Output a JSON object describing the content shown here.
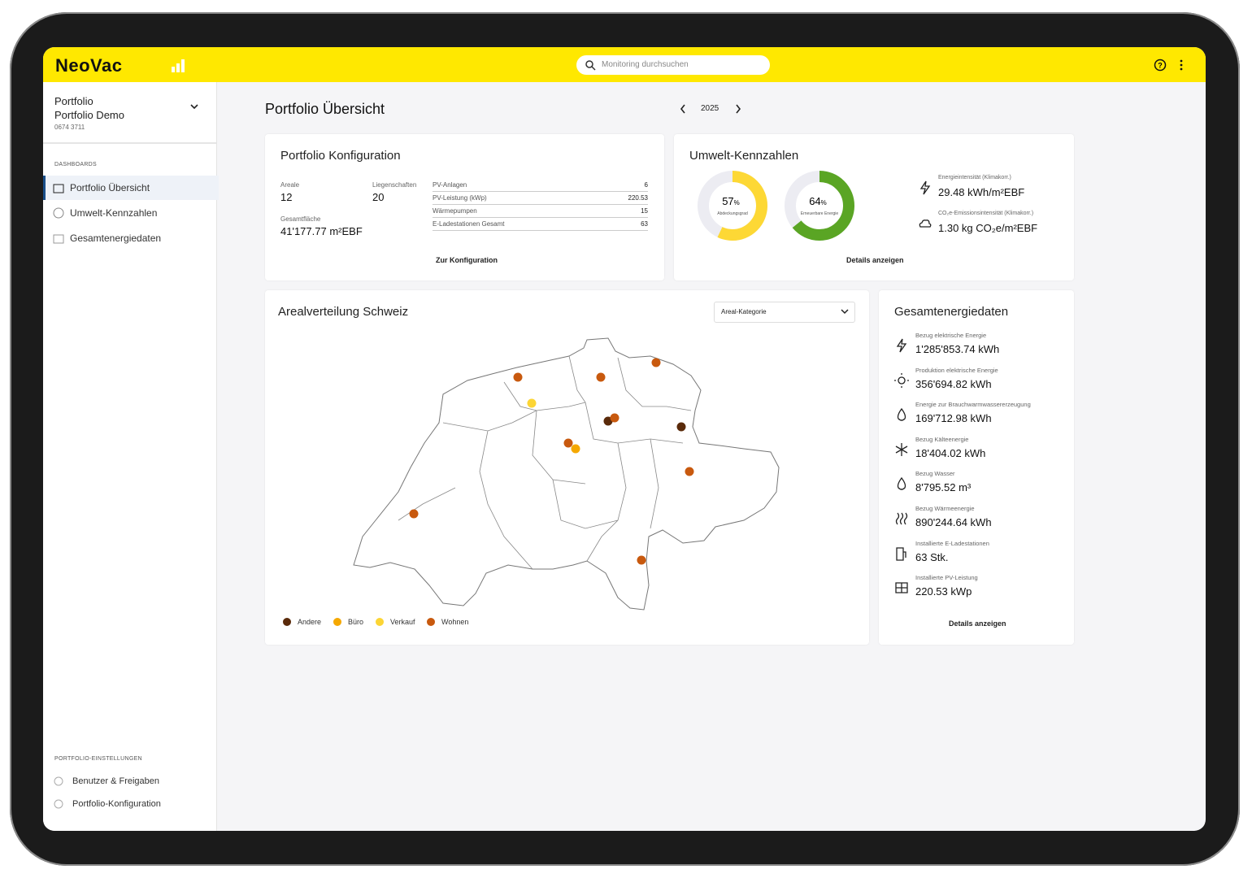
{
  "header": {
    "logo": "NeoVac",
    "search_placeholder": "Monitoring durchsuchen"
  },
  "sidebar": {
    "portfolio_label": "Portfolio",
    "portfolio_name": "Portfolio Demo",
    "portfolio_id": "0674 3711",
    "dashboards_heading": "DASHBOARDS",
    "dashboards": [
      "Portfolio Übersicht",
      "Umwelt-Kennzahlen",
      "Gesamtenergiedaten"
    ],
    "settings_heading": "PORTFOLIO-EINSTELLUNGEN",
    "settings": [
      "Benutzer & Freigaben",
      "Portfolio-Konfiguration"
    ]
  },
  "main": {
    "title": "Portfolio Übersicht",
    "year": "2025"
  },
  "config_card": {
    "title": "Portfolio Konfiguration",
    "stats": [
      {
        "label": "Areale",
        "value": "12"
      },
      {
        "label": "Liegenschaften",
        "value": "20"
      },
      {
        "label": "Gesamtfläche",
        "value": "41'177.77 m²EBF"
      }
    ],
    "rows": [
      [
        "PV-Anlagen",
        "6"
      ],
      [
        "PV-Leistung (kWp)",
        "220.53"
      ],
      [
        "Wärmepumpen",
        "15"
      ],
      [
        "E-Ladestationen Gesamt",
        "63"
      ]
    ],
    "link": "Zur Konfiguration"
  },
  "env_card": {
    "title": "Umwelt-Kennzahlen",
    "donuts": [
      {
        "value": 57,
        "unit": "%",
        "label": "Abdeckungsgrad",
        "color": "#fdd835"
      },
      {
        "value": 64,
        "unit": "%",
        "label": "Erneuerbare Energie",
        "color": "#5aa524"
      }
    ],
    "metrics": [
      {
        "label": "Energieintensität (Klimakorr.)",
        "value": "29.48 kWh/m²EBF"
      },
      {
        "label": "CO₂e-Emissionsintensität (Klimakorr.)",
        "value": "1.30 kg CO₂e/m²EBF"
      }
    ],
    "link": "Details anzeigen"
  },
  "map_card": {
    "title": "Arealverteilung Schweiz",
    "dropdown": "Areal-Kategorie",
    "legend": [
      {
        "name": "Andere",
        "color": "#5a2a0a"
      },
      {
        "name": "Büro",
        "color": "#f5a800"
      },
      {
        "name": "Verkauf",
        "color": "#fcd535"
      },
      {
        "name": "Wohnen",
        "color": "#c8590e"
      }
    ]
  },
  "energy_card": {
    "title": "Gesamtenergiedaten",
    "items": [
      {
        "label": "Bezug elektrische Energie",
        "value": "1'285'853.74 kWh"
      },
      {
        "label": "Produktion elektrische Energie",
        "value": "356'694.82 kWh"
      },
      {
        "label": "Energie zur Brauchwarmwassererzeugung",
        "value": "169'712.98 kWh"
      },
      {
        "label": "Bezug Kälteenergie",
        "value": "18'404.02 kWh"
      },
      {
        "label": "Bezug Wasser",
        "value": "8'795.52 m³"
      },
      {
        "label": "Bezug Wärmeenergie",
        "value": "890'244.64 kWh"
      },
      {
        "label": "Installierte E-Ladestationen",
        "value": "63 Stk."
      },
      {
        "label": "Installierte PV-Leistung",
        "value": "220.53 kWp"
      }
    ],
    "link": "Details anzeigen"
  }
}
